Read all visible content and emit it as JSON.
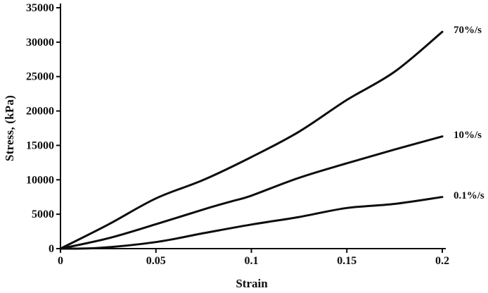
{
  "chart_data": {
    "type": "line",
    "title": "",
    "xlabel": "Strain",
    "ylabel": "Stress, (kPa)",
    "xlim": [
      0,
      0.2
    ],
    "ylim": [
      0,
      35000
    ],
    "x_ticks": [
      0,
      0.05,
      0.1,
      0.15,
      0.2
    ],
    "x_tick_labels": [
      "0",
      "0.05",
      "0.1",
      "0.15",
      "0.2"
    ],
    "y_ticks": [
      0,
      5000,
      10000,
      15000,
      20000,
      25000,
      30000,
      35000
    ],
    "y_tick_labels": [
      "0",
      "5000",
      "10000",
      "15000",
      "20000",
      "25000",
      "30000",
      "35000"
    ],
    "grid": false,
    "legend_position": "line-end-labels-right",
    "background_color": "#ffffff",
    "axis_color": "#0d0d0d",
    "line_color": "#0d0d0d",
    "line_width": 3,
    "series": [
      {
        "name": "70%/s",
        "x": [
          0,
          0.025,
          0.05,
          0.075,
          0.1,
          0.125,
          0.15,
          0.175,
          0.2
        ],
        "y": [
          0,
          3500,
          7300,
          10000,
          13300,
          17000,
          21600,
          25700,
          31500
        ]
      },
      {
        "name": "10%/s",
        "x": [
          0,
          0.025,
          0.05,
          0.075,
          0.09,
          0.1,
          0.125,
          0.15,
          0.175,
          0.2
        ],
        "y": [
          0,
          1500,
          3550,
          5700,
          6900,
          7700,
          10300,
          12400,
          14400,
          16300
        ]
      },
      {
        "name": "0.1%/s",
        "x": [
          0,
          0.02,
          0.05,
          0.075,
          0.1,
          0.125,
          0.15,
          0.175,
          0.2
        ],
        "y": [
          0,
          100,
          950,
          2250,
          3500,
          4600,
          5900,
          6500,
          7500
        ]
      }
    ]
  }
}
